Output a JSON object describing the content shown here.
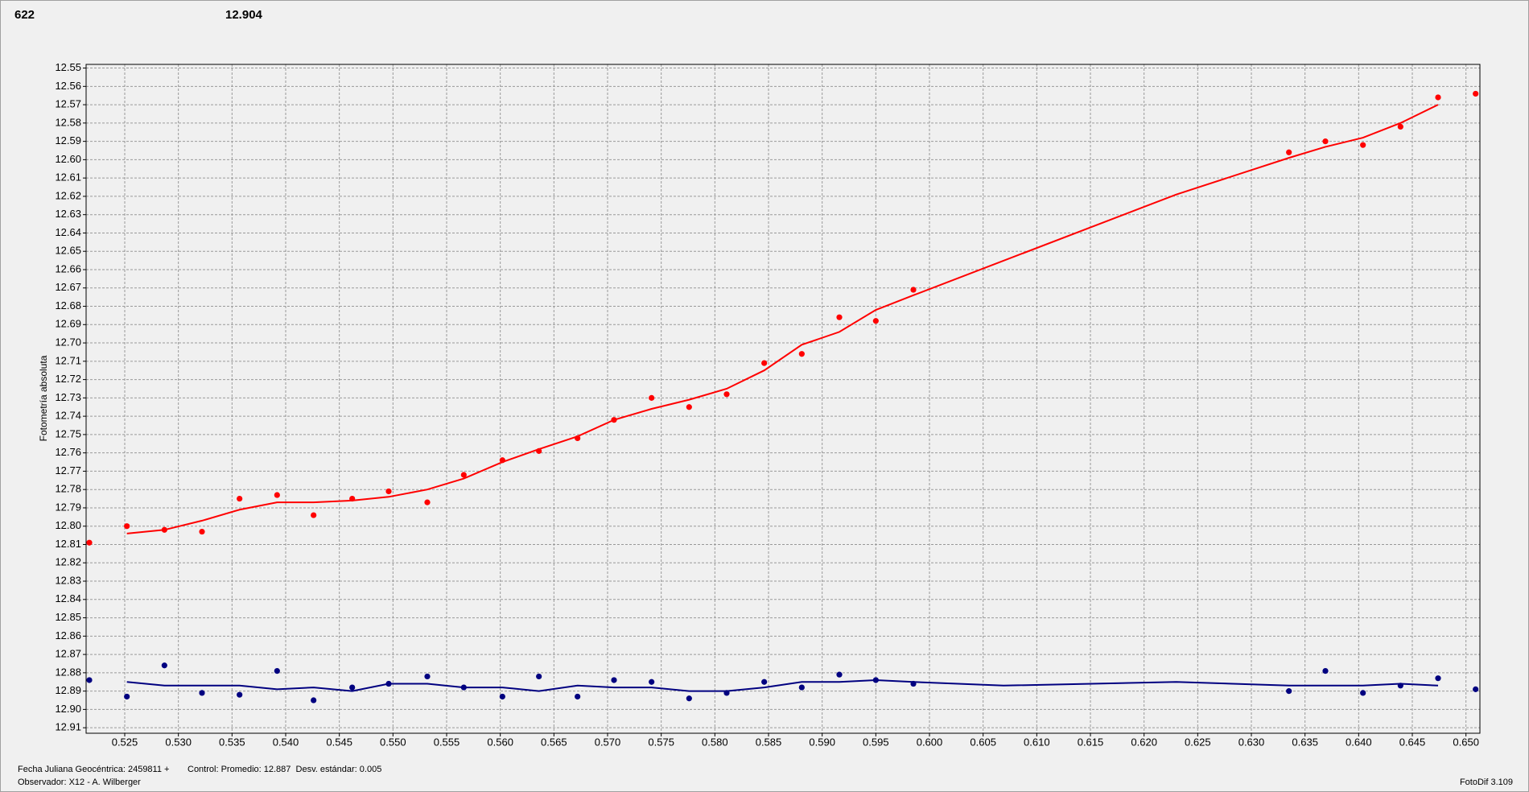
{
  "chart_data": {
    "type": "scatter",
    "annotations": [
      {
        "text": "622",
        "color": "#ff0000"
      },
      {
        "text": "12.904",
        "color": "#000080"
      }
    ],
    "y_label": "Fotometría absoluta",
    "footer": {
      "line1": "Fecha Juliana Geocéntrica: 2459811 +",
      "control": "Control: Promedio: 12.887  Desv. estándar: 0.005",
      "observer": "Observador: X12 - A. Wilberger",
      "version": "FotoDif 3.109"
    },
    "xlim": [
      0.5214,
      0.6513
    ],
    "ylim": [
      12.913,
      12.548
    ],
    "grid": true,
    "xticks": [
      0.525,
      {
        "value": 0.53,
        "label": "0.530"
      },
      0.535,
      {
        "value": 0.54,
        "label": "0.540"
      },
      0.545,
      {
        "value": 0.55,
        "label": "0.550"
      },
      0.555,
      {
        "value": 0.56,
        "label": "0.560"
      },
      0.565,
      {
        "value": 0.57,
        "label": "0.570"
      },
      0.575,
      {
        "value": 0.58,
        "label": "0.580"
      },
      0.585,
      {
        "value": 0.59,
        "label": "0.590"
      },
      0.595,
      {
        "value": 0.6,
        "label": "0.600"
      },
      0.605,
      {
        "value": 0.61,
        "label": "0.610"
      },
      0.615,
      {
        "value": 0.62,
        "label": "0.620"
      },
      0.625,
      {
        "value": 0.63,
        "label": "0.630"
      },
      0.635,
      {
        "value": 0.64,
        "label": "0.640"
      },
      0.645,
      {
        "value": 0.65,
        "label": "0.650"
      }
    ],
    "yticks": [
      12.55,
      12.56,
      12.57,
      12.58,
      12.59,
      {
        "value": 12.6,
        "label": "12.60"
      },
      12.61,
      12.62,
      12.63,
      12.64,
      12.65,
      12.66,
      12.67,
      12.68,
      12.69,
      {
        "value": 12.7,
        "label": "12.70"
      },
      12.71,
      12.72,
      12.73,
      12.74,
      12.75,
      12.76,
      12.77,
      12.78,
      12.79,
      {
        "value": 12.8,
        "label": "12.80"
      },
      12.81,
      12.82,
      12.83,
      12.84,
      12.85,
      12.86,
      12.87,
      12.88,
      12.89,
      {
        "value": 12.9,
        "label": "12.90"
      },
      12.91
    ],
    "series": [
      {
        "mode": "markers",
        "color": "#ff0000",
        "x": [
          0.5217,
          0.5252,
          0.5287,
          0.5322,
          0.5357,
          0.5392,
          0.5426,
          0.5462,
          0.5496,
          0.5532,
          0.5566,
          0.5602,
          0.5636,
          0.5672,
          0.5706,
          0.5741,
          0.5776,
          0.5811,
          0.5846,
          0.5881,
          0.5916,
          0.595,
          0.5985,
          0.6335,
          0.6369,
          0.6404,
          0.6439,
          0.6474,
          0.6509
        ],
        "values": [
          12.809,
          12.8,
          12.802,
          12.803,
          12.785,
          12.783,
          12.794,
          12.785,
          12.781,
          12.787,
          12.772,
          12.764,
          12.759,
          12.752,
          12.742,
          12.73,
          12.735,
          12.728,
          12.711,
          12.706,
          12.686,
          12.688,
          12.671,
          12.596,
          12.59,
          12.592,
          12.582,
          12.566,
          12.564
        ]
      },
      {
        "mode": "line",
        "color": "#ff0000",
        "x": [
          0.5252,
          0.5287,
          0.5322,
          0.5357,
          0.5392,
          0.5426,
          0.5462,
          0.5496,
          0.5532,
          0.5566,
          0.5602,
          0.5636,
          0.5672,
          0.5706,
          0.5741,
          0.5776,
          0.5811,
          0.5846,
          0.5881,
          0.5916,
          0.595,
          0.5985,
          0.623,
          0.6335,
          0.6369,
          0.6404,
          0.6439,
          0.6474
        ],
        "values": [
          12.804,
          12.802,
          12.797,
          12.791,
          12.787,
          12.787,
          12.786,
          12.784,
          12.78,
          12.774,
          12.765,
          12.758,
          12.751,
          12.742,
          12.736,
          12.731,
          12.725,
          12.715,
          12.701,
          12.694,
          12.682,
          12.674,
          12.619,
          12.599,
          12.593,
          12.588,
          12.58,
          12.57
        ]
      },
      {
        "mode": "markers",
        "color": "#000080",
        "x": [
          0.5217,
          0.5252,
          0.5287,
          0.5322,
          0.5357,
          0.5392,
          0.5426,
          0.5462,
          0.5496,
          0.5532,
          0.5566,
          0.5602,
          0.5636,
          0.5672,
          0.5706,
          0.5741,
          0.5776,
          0.5811,
          0.5846,
          0.5881,
          0.5916,
          0.595,
          0.5985,
          0.6335,
          0.6369,
          0.6404,
          0.6439,
          0.6474,
          0.6509
        ],
        "values": [
          12.884,
          12.893,
          12.876,
          12.891,
          12.892,
          12.879,
          12.895,
          12.888,
          12.886,
          12.882,
          12.888,
          12.893,
          12.882,
          12.893,
          12.884,
          12.885,
          12.894,
          12.891,
          12.885,
          12.888,
          12.881,
          12.884,
          12.886,
          12.89,
          12.879,
          12.891,
          12.887,
          12.883,
          12.889
        ]
      },
      {
        "mode": "line",
        "color": "#000080",
        "x": [
          0.5252,
          0.5287,
          0.5322,
          0.5357,
          0.5392,
          0.5426,
          0.5462,
          0.5496,
          0.5532,
          0.5566,
          0.5602,
          0.5636,
          0.5672,
          0.5706,
          0.5741,
          0.5776,
          0.5811,
          0.5846,
          0.5881,
          0.5916,
          0.595,
          0.5985,
          0.6069,
          0.623,
          0.6335,
          0.6369,
          0.6404,
          0.6439,
          0.6474
        ],
        "values": [
          12.885,
          12.887,
          12.887,
          12.887,
          12.889,
          12.888,
          12.89,
          12.886,
          12.886,
          12.888,
          12.888,
          12.89,
          12.887,
          12.888,
          12.888,
          12.89,
          12.89,
          12.888,
          12.885,
          12.885,
          12.884,
          12.885,
          12.887,
          12.885,
          12.887,
          12.887,
          12.887,
          12.886,
          12.887
        ]
      }
    ]
  }
}
